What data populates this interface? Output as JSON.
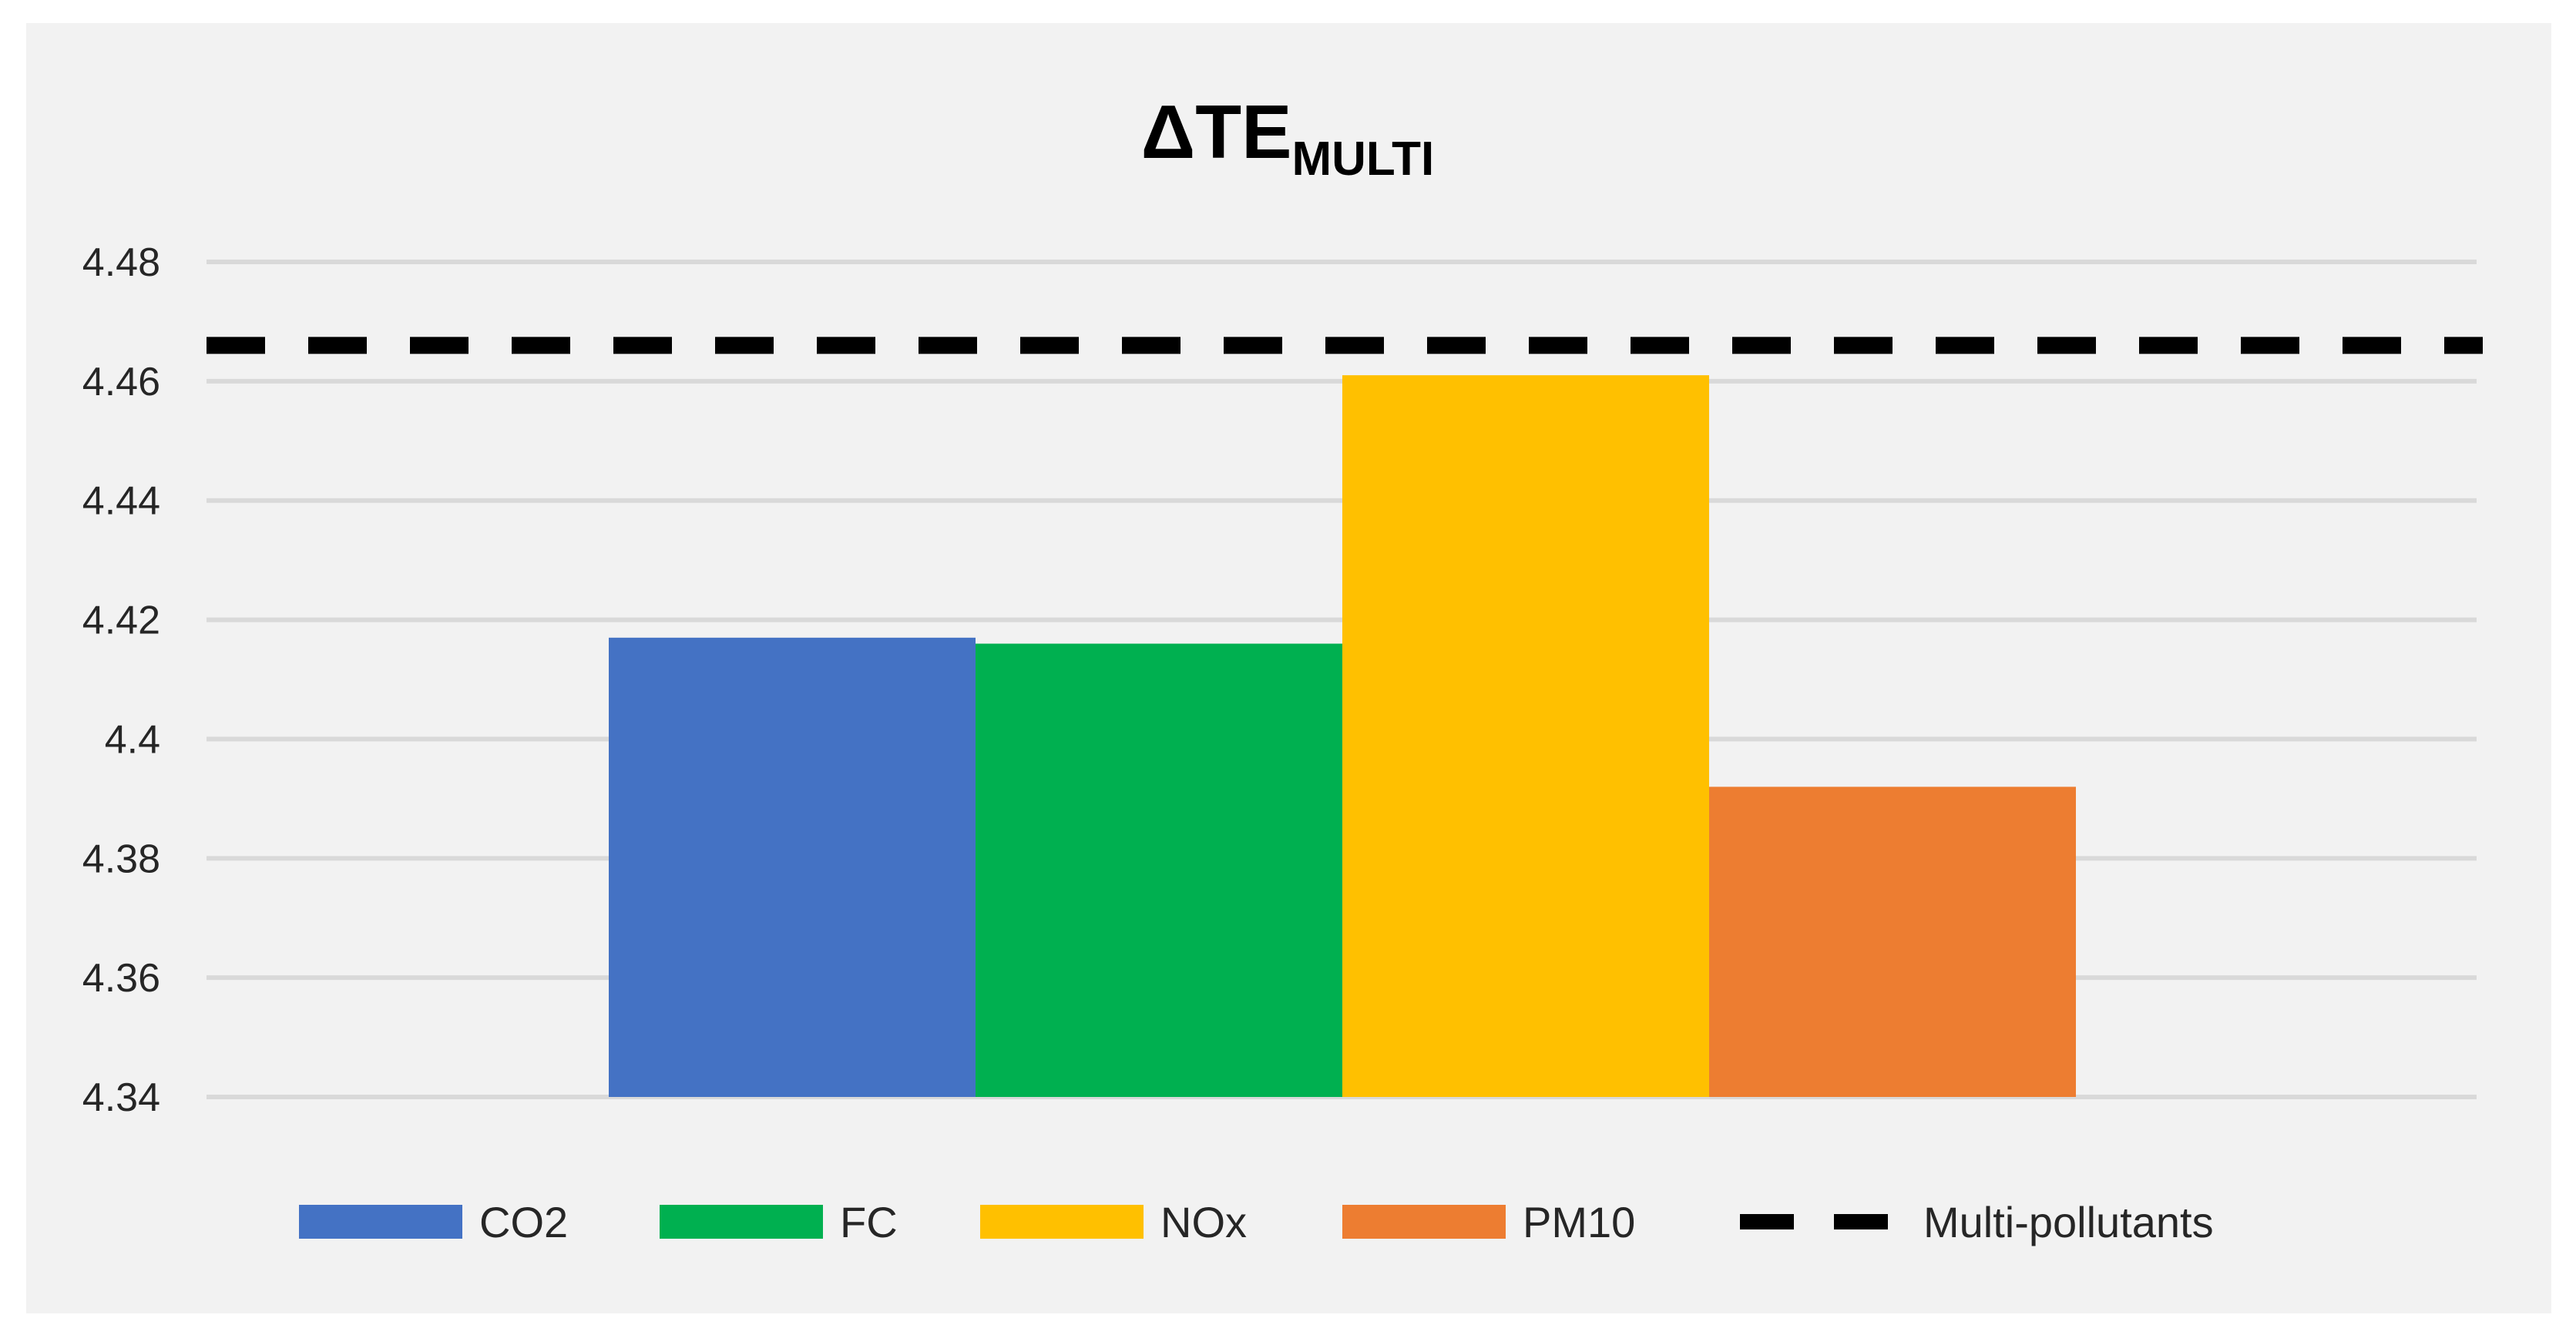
{
  "chart_data": {
    "type": "bar",
    "title": "ΔTE",
    "title_subscript": "MULTI",
    "xlabel": "",
    "ylabel": "",
    "ylim": [
      4.34,
      4.48
    ],
    "yticks": [
      "4.34",
      "4.36",
      "4.38",
      "4.4",
      "4.42",
      "4.44",
      "4.46",
      "4.48"
    ],
    "ytick_values": [
      4.34,
      4.36,
      4.38,
      4.4,
      4.42,
      4.44,
      4.46,
      4.48
    ],
    "grid": true,
    "legend_position": "bottom",
    "series": [
      {
        "name": "CO2",
        "value": 4.417,
        "color": "#4472c4"
      },
      {
        "name": "FC",
        "value": 4.416,
        "color": "#00b050"
      },
      {
        "name": "NOx",
        "value": 4.461,
        "color": "#ffc000"
      },
      {
        "name": "PM10",
        "value": 4.392,
        "color": "#ed7d31"
      }
    ],
    "reference_line": {
      "name": "Multi-pollutants",
      "value": 4.466,
      "color": "#000000",
      "style": "dashed"
    }
  }
}
